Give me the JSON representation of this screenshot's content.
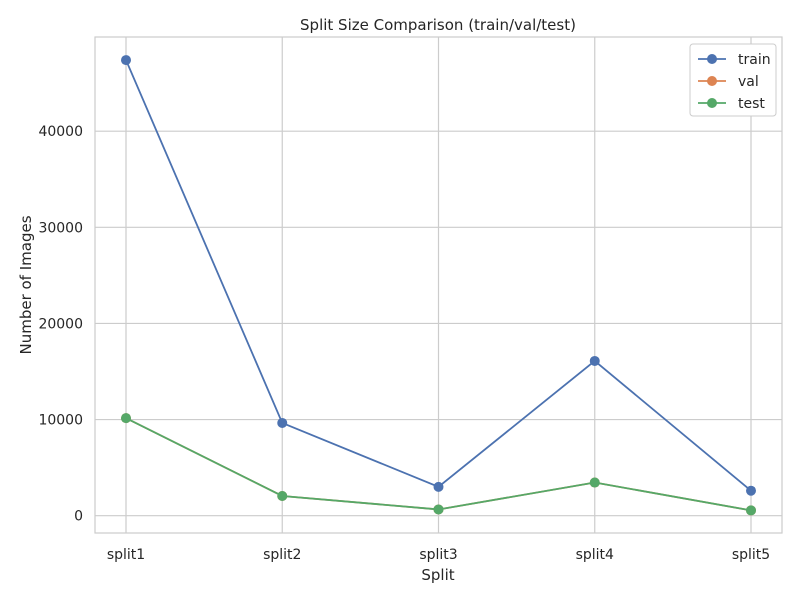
{
  "chart_data": {
    "type": "line",
    "title": "Split Size Comparison (train/val/test)",
    "xlabel": "Split",
    "ylabel": "Number of Images",
    "categories": [
      "split1",
      "split2",
      "split3",
      "split4",
      "split5"
    ],
    "series": [
      {
        "name": "train",
        "color": "#4c72b0",
        "values": [
          47400,
          9650,
          3000,
          16100,
          2600
        ]
      },
      {
        "name": "val",
        "color": "#dd8452",
        "values": [
          10150,
          2050,
          650,
          3450,
          550
        ]
      },
      {
        "name": "test",
        "color": "#55a868",
        "values": [
          10150,
          2050,
          650,
          3450,
          550
        ]
      }
    ],
    "ylim": [
      -1800,
      49800
    ],
    "yticks": [
      0,
      10000,
      20000,
      30000,
      40000
    ],
    "grid": true,
    "legend_position": "top-right"
  }
}
